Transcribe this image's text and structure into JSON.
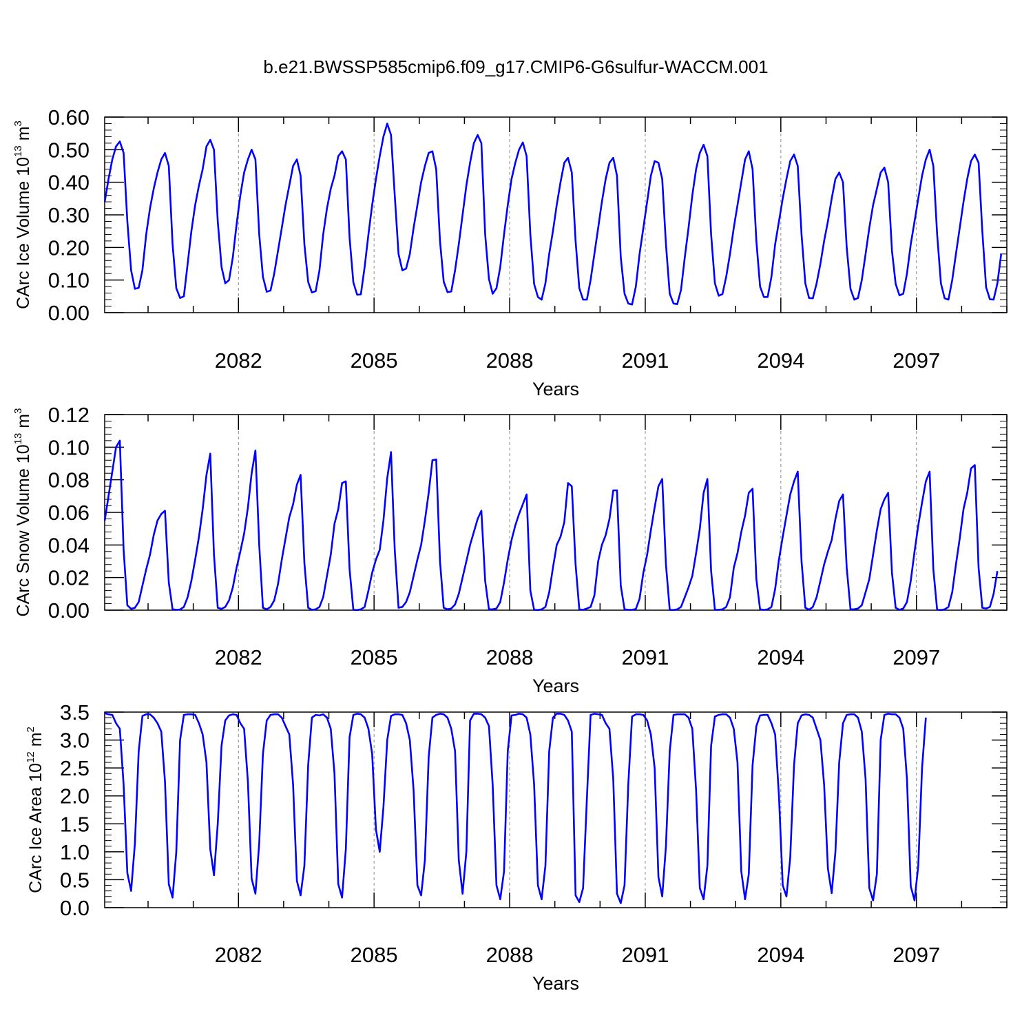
{
  "title": "b.e21.BWSSP585cmip6.f09_g17.CMIP6-G6sulfur-WACCM.001",
  "colors": {
    "line": "#0000ff",
    "axes": "#000000",
    "grid": "#888888"
  },
  "chart_data": [
    {
      "type": "line",
      "ylabel": {
        "text": "CArc Ice Volume 10",
        "exp": "13",
        "unit": "m",
        "unit_exp": "3"
      },
      "xlabel": "Years",
      "xlim": [
        2079.04,
        2099.0
      ],
      "x_ticks": [
        2082,
        2085,
        2088,
        2091,
        2094,
        2097
      ],
      "x_tick_labels": [
        "2082",
        "2085",
        "2088",
        "2091",
        "2094",
        "2097"
      ],
      "ylim": [
        0,
        0.6
      ],
      "y_ticks": [
        0,
        0.1,
        0.2,
        0.3,
        0.4,
        0.5,
        0.6
      ],
      "y_tick_labels": [
        "0.00",
        "0.10",
        "0.20",
        "0.30",
        "0.40",
        "0.50",
        "0.60"
      ],
      "grid": "vertical dashed at labeled years",
      "series": [
        {
          "name": "CArc Ice Volume",
          "x_start": 2079.042,
          "x_step": 0.08333,
          "values": [
            0.34,
            0.41,
            0.47,
            0.51,
            0.525,
            0.49,
            0.28,
            0.13,
            0.073,
            0.076,
            0.13,
            0.24,
            0.32,
            0.38,
            0.43,
            0.47,
            0.49,
            0.45,
            0.21,
            0.075,
            0.045,
            0.05,
            0.15,
            0.25,
            0.33,
            0.39,
            0.44,
            0.51,
            0.53,
            0.5,
            0.28,
            0.14,
            0.09,
            0.1,
            0.17,
            0.27,
            0.36,
            0.43,
            0.47,
            0.5,
            0.47,
            0.24,
            0.11,
            0.064,
            0.068,
            0.12,
            0.19,
            0.26,
            0.33,
            0.39,
            0.45,
            0.47,
            0.42,
            0.21,
            0.094,
            0.062,
            0.066,
            0.13,
            0.24,
            0.32,
            0.38,
            0.42,
            0.48,
            0.495,
            0.47,
            0.23,
            0.093,
            0.055,
            0.056,
            0.14,
            0.24,
            0.33,
            0.41,
            0.48,
            0.54,
            0.58,
            0.545,
            0.36,
            0.18,
            0.13,
            0.135,
            0.18,
            0.26,
            0.33,
            0.4,
            0.45,
            0.49,
            0.495,
            0.44,
            0.22,
            0.095,
            0.063,
            0.065,
            0.13,
            0.21,
            0.3,
            0.39,
            0.46,
            0.52,
            0.545,
            0.52,
            0.24,
            0.103,
            0.058,
            0.075,
            0.14,
            0.24,
            0.33,
            0.41,
            0.46,
            0.5,
            0.522,
            0.48,
            0.24,
            0.088,
            0.048,
            0.04,
            0.09,
            0.18,
            0.25,
            0.33,
            0.4,
            0.46,
            0.475,
            0.43,
            0.22,
            0.075,
            0.04,
            0.04,
            0.1,
            0.18,
            0.26,
            0.34,
            0.41,
            0.46,
            0.475,
            0.42,
            0.17,
            0.058,
            0.028,
            0.025,
            0.08,
            0.18,
            0.26,
            0.34,
            0.42,
            0.465,
            0.46,
            0.41,
            0.21,
            0.058,
            0.028,
            0.026,
            0.07,
            0.17,
            0.26,
            0.36,
            0.44,
            0.49,
            0.515,
            0.48,
            0.24,
            0.09,
            0.052,
            0.057,
            0.11,
            0.18,
            0.26,
            0.33,
            0.4,
            0.47,
            0.495,
            0.44,
            0.22,
            0.08,
            0.048,
            0.048,
            0.11,
            0.21,
            0.28,
            0.35,
            0.41,
            0.465,
            0.485,
            0.45,
            0.24,
            0.09,
            0.045,
            0.044,
            0.09,
            0.15,
            0.22,
            0.28,
            0.35,
            0.41,
            0.43,
            0.4,
            0.2,
            0.073,
            0.04,
            0.045,
            0.1,
            0.18,
            0.26,
            0.33,
            0.38,
            0.43,
            0.445,
            0.4,
            0.19,
            0.088,
            0.053,
            0.058,
            0.12,
            0.21,
            0.28,
            0.35,
            0.42,
            0.47,
            0.5,
            0.45,
            0.24,
            0.09,
            0.044,
            0.04,
            0.1,
            0.18,
            0.26,
            0.34,
            0.41,
            0.465,
            0.485,
            0.46,
            0.25,
            0.078,
            0.041,
            0.04,
            0.09,
            0.18
          ]
        }
      ]
    },
    {
      "type": "line",
      "ylabel": {
        "text": "CArc Snow Volume 10",
        "exp": "13",
        "unit": "m",
        "unit_exp": "3"
      },
      "xlabel": "Years",
      "xlim": [
        2079.04,
        2099.0
      ],
      "x_ticks": [
        2082,
        2085,
        2088,
        2091,
        2094,
        2097
      ],
      "x_tick_labels": [
        "2082",
        "2085",
        "2088",
        "2091",
        "2094",
        "2097"
      ],
      "ylim": [
        0,
        0.12
      ],
      "y_ticks": [
        0,
        0.02,
        0.04,
        0.06,
        0.08,
        0.1,
        0.12
      ],
      "y_tick_labels": [
        "0.00",
        "0.02",
        "0.04",
        "0.06",
        "0.08",
        "0.10",
        "0.12"
      ],
      "grid": "vertical dashed at labeled years",
      "series": [
        {
          "name": "CArc Snow Volume",
          "x_start": 2079.042,
          "x_step": 0.08333,
          "values": [
            0.055,
            0.07,
            0.085,
            0.1,
            0.104,
            0.037,
            0.003,
            0.0008,
            0.0015,
            0.005,
            0.015,
            0.025,
            0.034,
            0.046,
            0.055,
            0.059,
            0.061,
            0.017,
            0.0005,
            0.0002,
            0.0004,
            0.002,
            0.008,
            0.018,
            0.031,
            0.045,
            0.062,
            0.083,
            0.096,
            0.034,
            0.0015,
            0.0008,
            0.002,
            0.006,
            0.014,
            0.026,
            0.036,
            0.047,
            0.063,
            0.084,
            0.098,
            0.04,
            0.0015,
            0.0005,
            0.002,
            0.006,
            0.016,
            0.031,
            0.044,
            0.057,
            0.065,
            0.077,
            0.083,
            0.029,
            0.0015,
            0.0002,
            0.0005,
            0.002,
            0.008,
            0.021,
            0.034,
            0.053,
            0.062,
            0.078,
            0.079,
            0.025,
            0.0002,
            0.0001,
            0.0005,
            0.002,
            0.012,
            0.023,
            0.031,
            0.037,
            0.055,
            0.081,
            0.097,
            0.037,
            0.0015,
            0.002,
            0.005,
            0.011,
            0.021,
            0.031,
            0.04,
            0.055,
            0.072,
            0.092,
            0.0925,
            0.03,
            0.0015,
            0.0005,
            0.001,
            0.0035,
            0.01,
            0.02,
            0.03,
            0.04,
            0.048,
            0.056,
            0.061,
            0.018,
            0.0005,
            0.0005,
            0.001,
            0.005,
            0.017,
            0.031,
            0.043,
            0.052,
            0.059,
            0.065,
            0.071,
            0.012,
            0.0002,
            0.0001,
            0.0005,
            0.002,
            0.011,
            0.026,
            0.04,
            0.045,
            0.054,
            0.078,
            0.076,
            0.028,
            0.0005,
            0.0002,
            0.001,
            0.002,
            0.009,
            0.03,
            0.04,
            0.046,
            0.056,
            0.0735,
            0.0735,
            0.015,
            0.0005,
            0.0002,
            0.0002,
            0.0007,
            0.007,
            0.023,
            0.034,
            0.049,
            0.063,
            0.076,
            0.0805,
            0.028,
            0.0002,
            0.0001,
            0.0005,
            0.002,
            0.008,
            0.014,
            0.021,
            0.035,
            0.05,
            0.072,
            0.0805,
            0.024,
            0.0002,
            0.0002,
            0.0005,
            0.002,
            0.008,
            0.026,
            0.035,
            0.048,
            0.058,
            0.072,
            0.0745,
            0.019,
            0.0005,
            0.0002,
            0.0005,
            0.002,
            0.013,
            0.031,
            0.045,
            0.058,
            0.071,
            0.079,
            0.085,
            0.03,
            0.0015,
            0.0003,
            0.002,
            0.008,
            0.018,
            0.028,
            0.036,
            0.043,
            0.056,
            0.067,
            0.071,
            0.026,
            0.0005,
            0.0005,
            0.001,
            0.003,
            0.011,
            0.019,
            0.034,
            0.049,
            0.062,
            0.068,
            0.072,
            0.023,
            0.0015,
            0.0002,
            0.001,
            0.005,
            0.018,
            0.036,
            0.052,
            0.066,
            0.079,
            0.085,
            0.025,
            0.0002,
            0.0001,
            0.0005,
            0.002,
            0.011,
            0.028,
            0.044,
            0.062,
            0.072,
            0.087,
            0.089,
            0.026,
            0.0015,
            0.001,
            0.002,
            0.01,
            0.024
          ]
        }
      ]
    },
    {
      "type": "line",
      "ylabel": {
        "text": "CArc Ice Area 10",
        "exp": "12",
        "unit": "m",
        "unit_exp": "2"
      },
      "xlabel": "Years",
      "xlim": [
        2079.04,
        2099.0
      ],
      "x_ticks": [
        2082,
        2085,
        2088,
        2091,
        2094,
        2097
      ],
      "x_tick_labels": [
        "2082",
        "2085",
        "2088",
        "2091",
        "2094",
        "2097"
      ],
      "ylim": [
        0,
        3.5
      ],
      "y_ticks": [
        0,
        0.5,
        1.0,
        1.5,
        2.0,
        2.5,
        3.0,
        3.5
      ],
      "y_tick_labels": [
        "0.0",
        "0.5",
        "1.0",
        "1.5",
        "2.0",
        "2.5",
        "3.0",
        "3.5"
      ],
      "grid": "vertical dashed at labeled years",
      "series": [
        {
          "name": "CArc Ice Area",
          "x_start": 2079.042,
          "x_step": 0.08333,
          "values": [
            3.48,
            3.46,
            3.45,
            3.3,
            3.2,
            2.2,
            0.62,
            0.3,
            1.15,
            2.8,
            3.43,
            3.46,
            3.46,
            3.4,
            3.3,
            3.15,
            2.25,
            0.42,
            0.18,
            1.0,
            3.0,
            3.45,
            3.46,
            3.46,
            3.45,
            3.3,
            3.1,
            2.6,
            1.05,
            0.58,
            1.5,
            2.9,
            3.35,
            3.44,
            3.46,
            3.45,
            3.3,
            3.2,
            2.25,
            0.52,
            0.25,
            1.15,
            2.75,
            3.35,
            3.45,
            3.46,
            3.46,
            3.4,
            3.25,
            3.1,
            2.2,
            0.48,
            0.22,
            0.75,
            2.55,
            3.4,
            3.45,
            3.44,
            3.46,
            3.4,
            3.2,
            2.4,
            0.42,
            0.18,
            1.05,
            3.05,
            3.45,
            3.47,
            3.46,
            3.4,
            3.2,
            2.75,
            1.4,
            1.0,
            1.8,
            3.0,
            3.43,
            3.46,
            3.46,
            3.45,
            3.3,
            3.0,
            2.1,
            0.4,
            0.22,
            0.85,
            2.7,
            3.4,
            3.45,
            3.47,
            3.46,
            3.4,
            3.2,
            2.8,
            0.85,
            0.25,
            1.0,
            3.35,
            3.47,
            3.47,
            3.46,
            3.4,
            3.25,
            2.2,
            0.4,
            0.15,
            0.65,
            2.8,
            3.44,
            3.45,
            3.47,
            3.46,
            3.4,
            3.1,
            2.2,
            0.4,
            0.15,
            0.75,
            2.8,
            3.4,
            3.47,
            3.47,
            3.45,
            3.35,
            3.15,
            0.22,
            0.1,
            0.35,
            1.95,
            3.45,
            3.47,
            3.46,
            3.45,
            3.3,
            3.2,
            2.3,
            0.25,
            0.08,
            0.4,
            2.2,
            3.42,
            3.46,
            3.46,
            3.45,
            3.35,
            3.1,
            2.5,
            0.55,
            0.2,
            1.1,
            2.8,
            3.45,
            3.46,
            3.46,
            3.46,
            3.4,
            3.2,
            2.1,
            0.35,
            0.15,
            0.75,
            2.9,
            3.42,
            3.45,
            3.46,
            3.46,
            3.4,
            3.2,
            2.6,
            0.65,
            0.15,
            0.6,
            2.55,
            3.25,
            3.44,
            3.45,
            3.45,
            3.3,
            3.1,
            2.0,
            0.4,
            0.2,
            0.9,
            2.55,
            3.3,
            3.44,
            3.46,
            3.45,
            3.4,
            3.2,
            3.0,
            2.2,
            0.7,
            0.26,
            1.0,
            2.6,
            3.3,
            3.45,
            3.46,
            3.46,
            3.4,
            3.15,
            2.3,
            0.35,
            0.13,
            0.6,
            3.0,
            3.45,
            3.47,
            3.46,
            3.46,
            3.4,
            3.2,
            2.3,
            0.38,
            0.13,
            0.75,
            2.5,
            3.4
          ]
        }
      ]
    }
  ]
}
